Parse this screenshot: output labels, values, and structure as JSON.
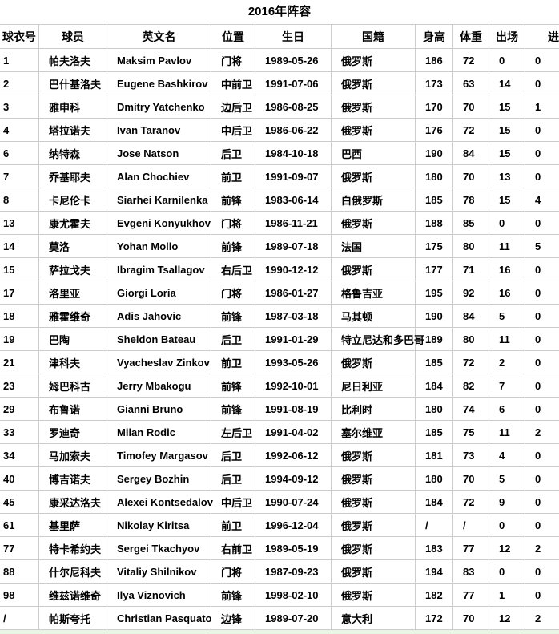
{
  "title": "2016年阵容",
  "table": {
    "headers": [
      "球衣号",
      "球员",
      "英文名",
      "位置",
      "生日",
      "国籍",
      "身高",
      "体重",
      "出场",
      "进球"
    ],
    "rows": [
      [
        "1",
        "帕夫洛夫",
        "Maksim Pavlov",
        "门将",
        "1989-05-26",
        "俄罗斯",
        "186",
        "72",
        "0",
        "0"
      ],
      [
        "2",
        "巴什基洛夫",
        "Eugene Bashkirov",
        "中前卫",
        "1991-07-06",
        "俄罗斯",
        "173",
        "63",
        "14",
        "0"
      ],
      [
        "3",
        "雅申科",
        "Dmitry Yatchenko",
        "边后卫",
        "1986-08-25",
        "俄罗斯",
        "170",
        "70",
        "15",
        "1"
      ],
      [
        "4",
        "塔拉诺夫",
        "Ivan Taranov",
        "中后卫",
        "1986-06-22",
        "俄罗斯",
        "176",
        "72",
        "15",
        "0"
      ],
      [
        "6",
        "纳特森",
        "Jose Natson",
        "后卫",
        "1984-10-18",
        "巴西",
        "190",
        "84",
        "15",
        "0"
      ],
      [
        "7",
        "乔基耶夫",
        "Alan Chochiev",
        "前卫",
        "1991-09-07",
        "俄罗斯",
        "180",
        "70",
        "13",
        "0"
      ],
      [
        "8",
        "卡尼伦卡",
        "Siarhei Karnilenka",
        "前锋",
        "1983-06-14",
        "白俄罗斯",
        "185",
        "78",
        "15",
        "4"
      ],
      [
        "13",
        "康尤霍夫",
        "Evgeni Konyukhov",
        "门将",
        "1986-11-21",
        "俄罗斯",
        "188",
        "85",
        "0",
        "0"
      ],
      [
        "14",
        "莫洛",
        "Yohan Mollo",
        "前锋",
        "1989-07-18",
        "法国",
        "175",
        "80",
        "11",
        "5"
      ],
      [
        "15",
        "萨拉戈夫",
        "Ibragim Tsallagov",
        "右后卫",
        "1990-12-12",
        "俄罗斯",
        "177",
        "71",
        "16",
        "0"
      ],
      [
        "17",
        "洛里亚",
        "Giorgi Loria",
        "门将",
        "1986-01-27",
        "格鲁吉亚",
        "195",
        "92",
        "16",
        "0"
      ],
      [
        "18",
        "雅霍维奇",
        "Adis Jahovic",
        "前锋",
        "1987-03-18",
        "马其顿",
        "190",
        "84",
        "5",
        "0"
      ],
      [
        "19",
        "巴陶",
        "Sheldon Bateau",
        "后卫",
        "1991-01-29",
        "特立尼达和多巴哥",
        "189",
        "80",
        "11",
        "0"
      ],
      [
        "21",
        "津科夫",
        "Vyacheslav Zinkov",
        "前卫",
        "1993-05-26",
        "俄罗斯",
        "185",
        "72",
        "2",
        "0"
      ],
      [
        "23",
        "姆巴科古",
        "Jerry Mbakogu",
        "前锋",
        "1992-10-01",
        "尼日利亚",
        "184",
        "82",
        "7",
        "0"
      ],
      [
        "29",
        "布鲁诺",
        "Gianni Bruno",
        "前锋",
        "1991-08-19",
        "比利时",
        "180",
        "74",
        "6",
        "0"
      ],
      [
        "33",
        "罗迪奇",
        "Milan Rodic",
        "左后卫",
        "1991-04-02",
        "塞尔维亚",
        "185",
        "75",
        "11",
        "2"
      ],
      [
        "34",
        "马加索夫",
        "Timofey Margasov",
        "后卫",
        "1992-06-12",
        "俄罗斯",
        "181",
        "73",
        "4",
        "0"
      ],
      [
        "40",
        "博吉诺夫",
        "Sergey Bozhin",
        "后卫",
        "1994-09-12",
        "俄罗斯",
        "180",
        "70",
        "5",
        "0"
      ],
      [
        "45",
        "康采达洛夫",
        "Alexei Kontsedalov",
        "中后卫",
        "1990-07-24",
        "俄罗斯",
        "184",
        "72",
        "9",
        "0"
      ],
      [
        "61",
        "基里萨",
        "Nikolay Kiritsa",
        "前卫",
        "1996-12-04",
        "俄罗斯",
        "/",
        "/",
        "0",
        "0"
      ],
      [
        "77",
        "特卡希约夫",
        "Sergei Tkachyov",
        "右前卫",
        "1989-05-19",
        "俄罗斯",
        "183",
        "77",
        "12",
        "2"
      ],
      [
        "88",
        "什尔尼科夫",
        "Vitaliy Shilnikov",
        "门将",
        "1987-09-23",
        "俄罗斯",
        "194",
        "83",
        "0",
        "0"
      ],
      [
        "98",
        "维兹诺维奇",
        "Ilya Viznovich",
        "前锋",
        "1998-02-10",
        "俄罗斯",
        "182",
        "77",
        "1",
        "0"
      ],
      [
        "/",
        "帕斯夸托",
        "Christian Pasquato",
        "边锋",
        "1989-07-20",
        "意大利",
        "172",
        "70",
        "12",
        "2"
      ]
    ]
  },
  "colors": {
    "border": "#cccccc",
    "text": "#000000",
    "footer_strip": "#e8f5e4"
  }
}
